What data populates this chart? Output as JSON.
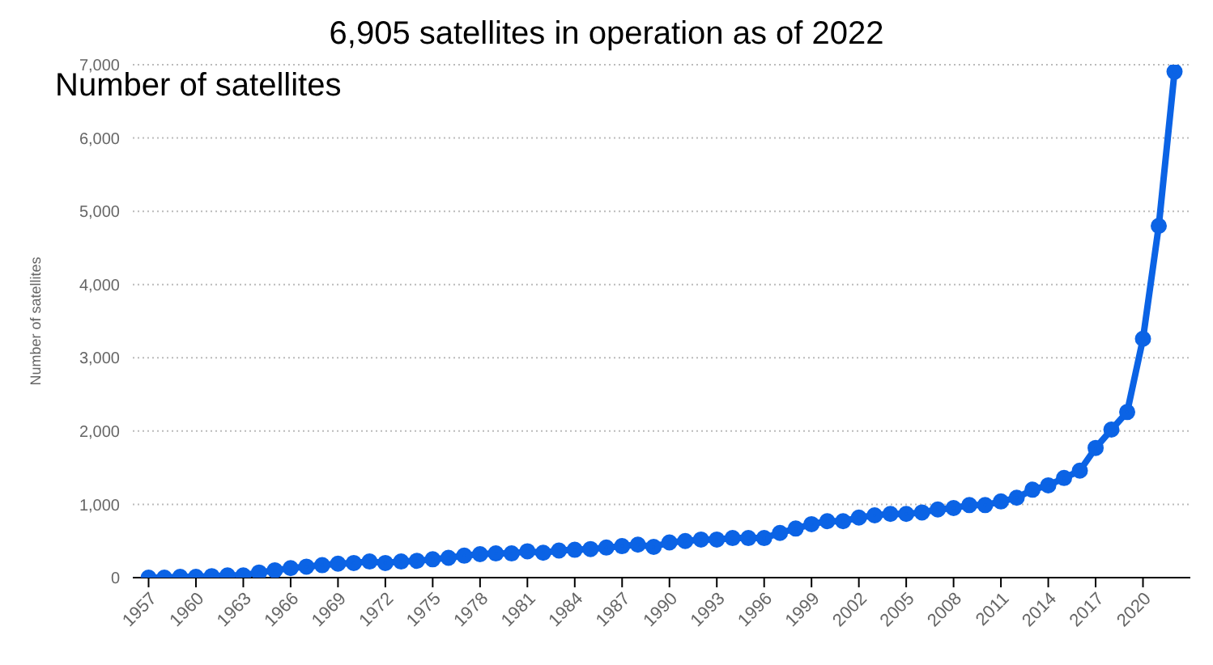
{
  "chart_data": {
    "type": "line",
    "title": "6,905 satellites in operation as of 2022",
    "subtitle": "Number of satellites",
    "ylabel": "Number of satellites",
    "x": [
      1957,
      1958,
      1959,
      1960,
      1961,
      1962,
      1963,
      1964,
      1965,
      1966,
      1967,
      1968,
      1969,
      1970,
      1971,
      1972,
      1973,
      1974,
      1975,
      1976,
      1977,
      1978,
      1979,
      1980,
      1981,
      1982,
      1983,
      1984,
      1985,
      1986,
      1987,
      1988,
      1989,
      1990,
      1991,
      1992,
      1993,
      1994,
      1995,
      1996,
      1997,
      1998,
      1999,
      2000,
      2001,
      2002,
      2003,
      2004,
      2005,
      2006,
      2007,
      2008,
      2009,
      2010,
      2011,
      2012,
      2013,
      2014,
      2015,
      2016,
      2017,
      2018,
      2019,
      2020,
      2021,
      2022
    ],
    "series": [
      {
        "color": "#0b63e5",
        "values": [
          0,
          0,
          10,
          10,
          20,
          30,
          30,
          70,
          100,
          130,
          150,
          170,
          190,
          200,
          220,
          200,
          220,
          230,
          250,
          270,
          300,
          320,
          330,
          330,
          360,
          340,
          370,
          380,
          390,
          410,
          430,
          450,
          420,
          480,
          500,
          520,
          520,
          540,
          540,
          540,
          610,
          670,
          730,
          770,
          770,
          820,
          850,
          870,
          870,
          890,
          930,
          950,
          990,
          990,
          1040,
          1090,
          1200,
          1260,
          1360,
          1460,
          1770,
          2020,
          2260,
          3260,
          4800,
          6905
        ]
      }
    ],
    "xlim": [
      1956,
      2023
    ],
    "xticks": [
      1957,
      1960,
      1963,
      1966,
      1969,
      1972,
      1975,
      1978,
      1981,
      1984,
      1987,
      1990,
      1993,
      1996,
      1999,
      2002,
      2005,
      2008,
      2011,
      2014,
      2017,
      2020
    ],
    "ylim": [
      0,
      7000
    ],
    "yticks": [
      {
        "value": 0,
        "label": "0"
      },
      {
        "value": 1000,
        "label": "1,000"
      },
      {
        "value": 2000,
        "label": "2,000"
      },
      {
        "value": 3000,
        "label": "3,000"
      },
      {
        "value": 4000,
        "label": "4,000"
      },
      {
        "value": 5000,
        "label": "5,000"
      },
      {
        "value": 6000,
        "label": "6,000"
      },
      {
        "value": 7000,
        "label": "7,000"
      }
    ],
    "grid": "y",
    "marker": "circle",
    "line_style": "solid",
    "legend": false
  }
}
